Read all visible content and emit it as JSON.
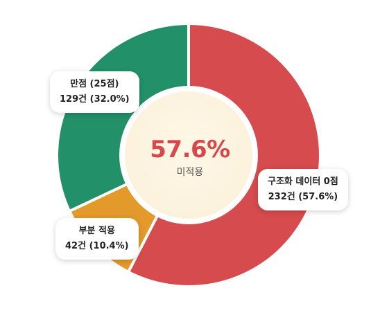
{
  "chart_data": {
    "type": "pie",
    "title": "",
    "categories": [
      "구조화 데이터 0점",
      "부분 적용",
      "만점 (25점)"
    ],
    "values": [
      232,
      42,
      129
    ],
    "percents": [
      "57.6%",
      "10.4%",
      "32.0%"
    ],
    "colors": [
      "#d64b4d",
      "#e39a2b",
      "#229068"
    ],
    "labels": [
      {
        "title": "구조화 데이터 0점",
        "detail": "232건 (57.6%)"
      },
      {
        "title": "부분 적용",
        "detail": "42건 (10.4%)"
      },
      {
        "title": "만점 (25점)",
        "detail": "129건 (32.0%)"
      }
    ],
    "center": {
      "value": "57.6%",
      "label": "미적용",
      "color": "#d9474a"
    }
  }
}
